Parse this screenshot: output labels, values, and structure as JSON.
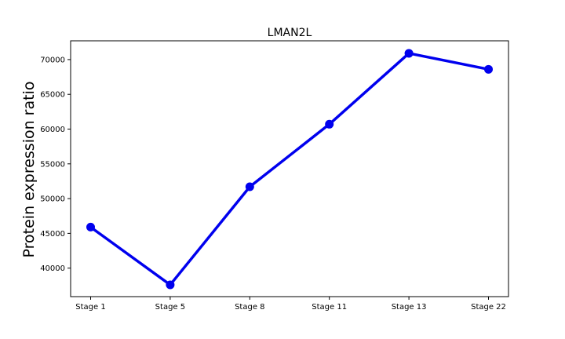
{
  "chart_data": {
    "type": "line",
    "title": "LMAN2L",
    "xlabel": "",
    "ylabel": "Protein expression ratio",
    "categories": [
      "Stage 1",
      "Stage 5",
      "Stage 8",
      "Stage 11",
      "Stage 13",
      "Stage 22"
    ],
    "series": [
      {
        "values": [
          45900,
          37600,
          51700,
          60700,
          70900,
          68600
        ],
        "color": "#0000ee"
      }
    ],
    "yticks": [
      40000,
      45000,
      50000,
      55000,
      60000,
      65000,
      70000
    ],
    "ylim": [
      35900,
      72700
    ],
    "grid": false,
    "legend": "none"
  }
}
